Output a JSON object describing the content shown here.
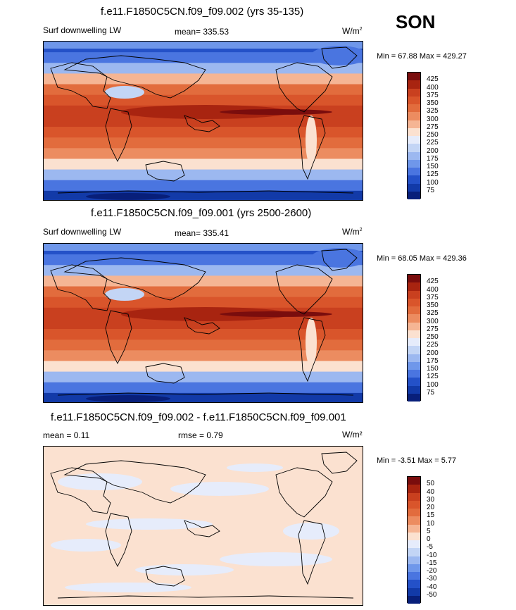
{
  "season": "SON",
  "panels": [
    {
      "title": "f.e11.F1850C5CN.f09_f09.002 (yrs 35-135)",
      "left_label": "Surf downwelling LW",
      "mean_label": "mean= 335.53",
      "units": "W/m",
      "units_sup": "2",
      "minmax": "Min =  67.88 Max = 429.27"
    },
    {
      "title": "f.e11.F1850C5CN.f09_f09.001 (yrs 2500-2600)",
      "left_label": "Surf downwelling LW",
      "mean_label": "mean= 335.41",
      "units": "W/m",
      "units_sup": "2",
      "minmax": "Min =  68.05 Max = 429.36"
    },
    {
      "title": "f.e11.F1850C5CN.f09_f09.002 - f.e11.F1850C5CN.f09_f09.001",
      "left_label": "mean =   0.11",
      "mean_label": "rmse =   0.79",
      "units": "W/m²",
      "minmax": "Min =  -3.51 Max =   5.77"
    }
  ],
  "colorbar_levels": [
    "425",
    "400",
    "375",
    "350",
    "325",
    "300",
    "275",
    "250",
    "225",
    "200",
    "175",
    "150",
    "125",
    "100",
    "75"
  ],
  "colorbar_diff_levels": [
    "50",
    "40",
    "30",
    "20",
    "15",
    "10",
    "5",
    "0",
    "-5",
    "-10",
    "-15",
    "-20",
    "-30",
    "-40",
    "-50"
  ],
  "colors": {
    "scale": [
      "#7a0d0d",
      "#a82410",
      "#c9401f",
      "#d9552b",
      "#e26c3d",
      "#ec8c60",
      "#f5b594",
      "#fbe1d0",
      "#e6ecfb",
      "#c3d5f5",
      "#9cb8f0",
      "#6f97ea",
      "#4a75e0",
      "#2451c8",
      "#123aa8",
      "#081f7a"
    ],
    "land_outline": "#000000"
  },
  "chart_data": [
    {
      "type": "heatmap",
      "title": "f.e11.F1850C5CN.f09_f09.002 (yrs 35-135)",
      "variable": "Surf downwelling LW",
      "units": "W/m2",
      "mean": 335.53,
      "min": 67.88,
      "max": 429.27,
      "levels": [
        75,
        100,
        125,
        150,
        175,
        200,
        225,
        250,
        275,
        300,
        325,
        350,
        375,
        400,
        425
      ]
    },
    {
      "type": "heatmap",
      "title": "f.e11.F1850C5CN.f09_f09.001 (yrs 2500-2600)",
      "variable": "Surf downwelling LW",
      "units": "W/m2",
      "mean": 335.41,
      "min": 68.05,
      "max": 429.36,
      "levels": [
        75,
        100,
        125,
        150,
        175,
        200,
        225,
        250,
        275,
        300,
        325,
        350,
        375,
        400,
        425
      ]
    },
    {
      "type": "heatmap",
      "title": "f.e11.F1850C5CN.f09_f09.002 - f.e11.F1850C5CN.f09_f09.001",
      "units": "W/m2",
      "mean": 0.11,
      "rmse": 0.79,
      "min": -3.51,
      "max": 5.77,
      "levels": [
        -50,
        -40,
        -30,
        -20,
        -15,
        -10,
        -5,
        0,
        5,
        10,
        15,
        20,
        30,
        40,
        50
      ]
    }
  ]
}
